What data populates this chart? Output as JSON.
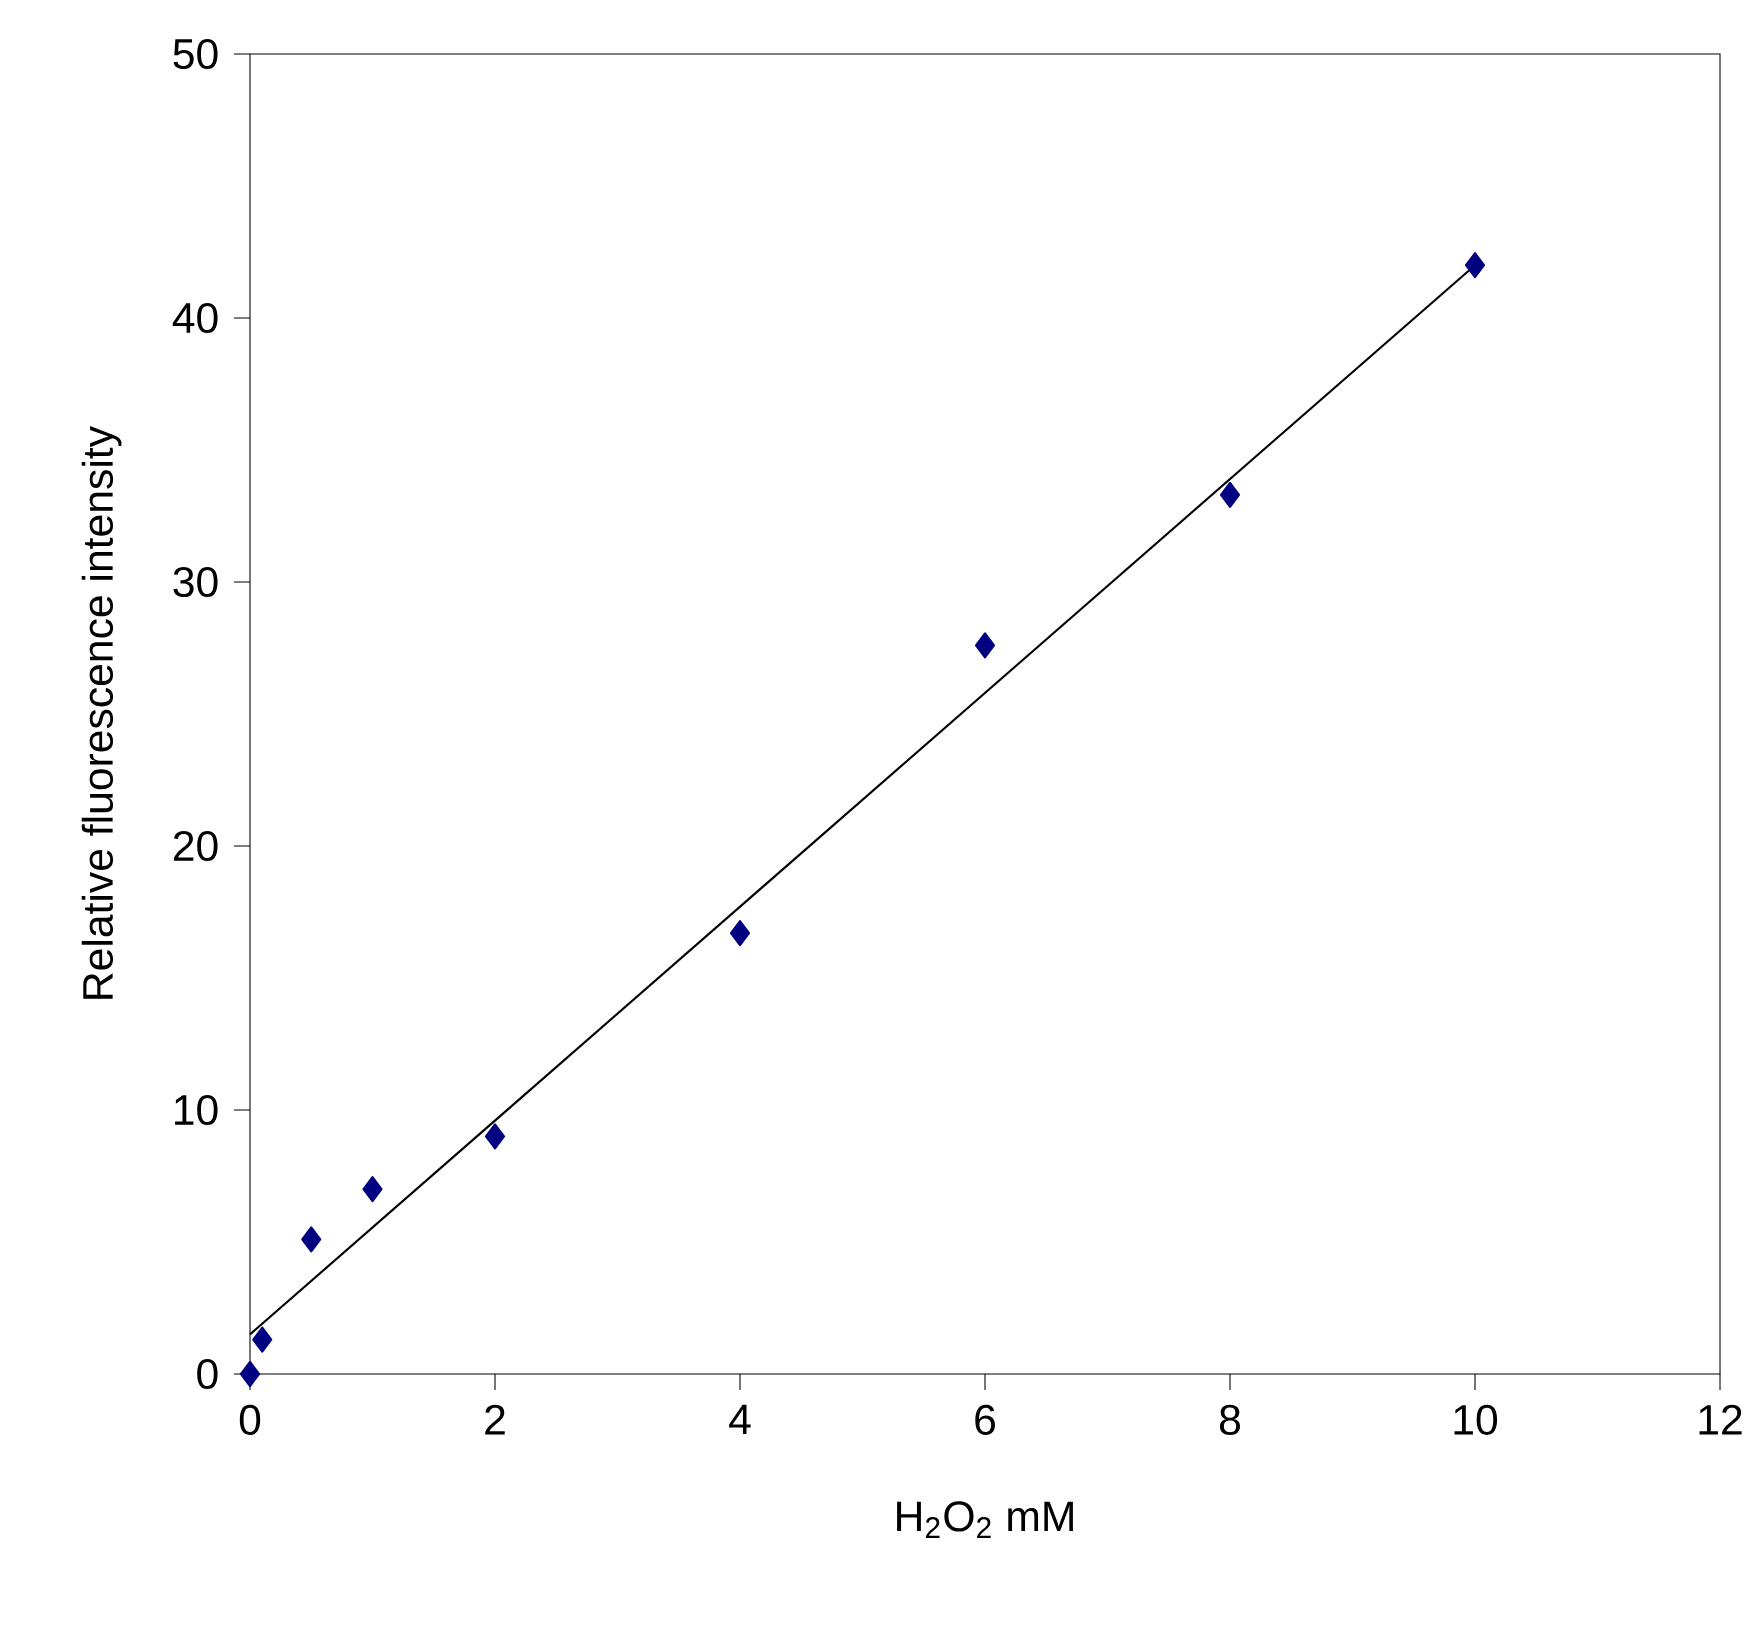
{
  "chart_data": {
    "type": "scatter",
    "xlabel": "H$_{2}$O$_{2}$ mM",
    "ylabel": "Relative fluorescence intensity",
    "series": [
      {
        "color": "#000080",
        "marker": "diamond",
        "x": [
          0,
          0.1,
          0.5,
          1,
          2,
          4,
          6,
          8,
          10
        ],
        "values": [
          0,
          1.3,
          5.1,
          7.0,
          9.0,
          16.7,
          27.6,
          33.3,
          42.0
        ]
      },
      {
        "type": "line",
        "color": "#000000",
        "marker": "none",
        "line_style": "solid",
        "x": [
          0,
          10
        ],
        "values": [
          1.5,
          42.0
        ]
      }
    ],
    "xlim": [
      0,
      12
    ],
    "ylim": [
      0,
      50
    ],
    "xticks": [
      0,
      2,
      4,
      6,
      8,
      10,
      12
    ],
    "yticks": [
      0,
      10,
      20,
      30,
      40,
      50
    ],
    "grid": false
  }
}
